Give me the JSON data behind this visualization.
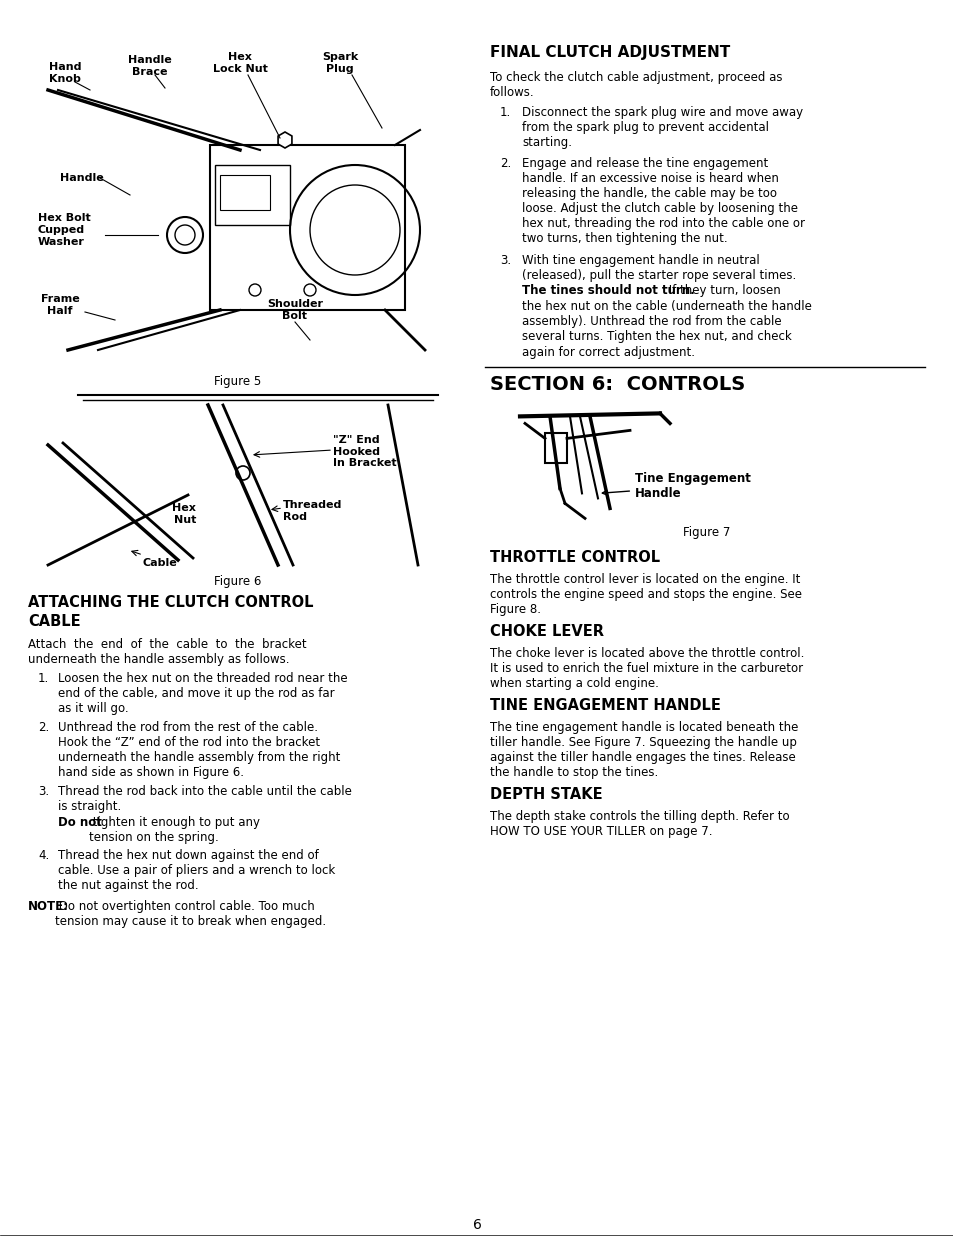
{
  "bg_color": "#ffffff",
  "page_number": "6",
  "final_clutch_title": "FINAL CLUTCH ADJUSTMENT",
  "final_clutch_intro": "To check the clutch cable adjustment, proceed as\nfollows.",
  "final_clutch_item1": "Disconnect the spark plug wire and move away\nfrom the spark plug to prevent accidental\nstarting.",
  "final_clutch_item2": "Engage and release the tine engagement\nhandle. If an excessive noise is heard when\nreleasing the handle, the cable may be too\nloose. Adjust the clutch cable by loosening the\nhex nut, threading the rod into the cable one or\ntwo turns, then tightening the nut.",
  "final_clutch_item3a": "With tine engagement handle in neutral\n(released), pull the starter rope several times.\n",
  "final_clutch_item3b": "The tines should not turn.",
  "final_clutch_item3c": " If they turn, loosen\nthe hex nut on the cable (underneath the handle\nassembly). Unthread the rod from the cable\nseveral turns. Tighten the hex nut, and check\nagain for correct adjustment.",
  "section6_title": "SECTION 6:  CONTROLS",
  "attaching_title_line1": "ATTACHING THE CLUTCH CONTROL",
  "attaching_title_line2": "CABLE",
  "attaching_intro": "Attach  the  end  of  the  cable  to  the  bracket\nunderneath the handle assembly as follows.",
  "attaching_item1": "Loosen the hex nut on the threaded rod near the\nend of the cable, and move it up the rod as far\nas it will go.",
  "attaching_item2": "Unthread the rod from the rest of the cable.\nHook the “Z” end of the rod into the bracket\nunderneath the handle assembly from the right\nhand side as shown in Figure 6.",
  "attaching_item3a": "Thread the rod back into the cable until the cable\nis straight. ",
  "attaching_item3b": "Do not",
  "attaching_item3c": " tighten it enough to put any\ntension on the spring.",
  "attaching_item4": "Thread the hex nut down against the end of\ncable. Use a pair of pliers and a wrench to lock\nthe nut against the rod.",
  "note_bold": "NOTE:",
  "note_rest": " Do not overtighten control cable. Too much\ntension may cause it to break when engaged.",
  "throttle_title": "THROTTLE CONTROL",
  "throttle_text": "The throttle control lever is located on the engine. It\ncontrols the engine speed and stops the engine. See\nFigure 8.",
  "choke_title": "CHOKE LEVER",
  "choke_text": "The choke lever is located above the throttle control.\nIt is used to enrich the fuel mixture in the carburetor\nwhen starting a cold engine.",
  "tine_title": "TINE ENGAGEMENT HANDLE",
  "tine_text": "The tine engagement handle is located beneath the\ntiller handle. See Figure 7. Squeezing the handle up\nagainst the tiller handle engages the tines. Release\nthe handle to stop the tines.",
  "depth_title": "DEPTH STAKE",
  "depth_text": "The depth stake controls the tilling depth. Refer to\nHOW TO USE YOUR TILLER on page 7.",
  "figure5_caption": "Figure 5",
  "figure6_caption": "Figure 6",
  "figure7_caption": "Figure 7"
}
